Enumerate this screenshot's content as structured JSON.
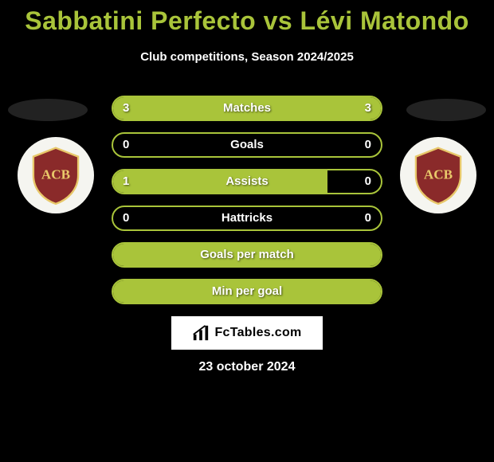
{
  "header": {
    "title": "Sabbatini Perfecto vs Lévi Matondo",
    "subtitle": "Club competitions, Season 2024/2025",
    "title_color": "#a9c43a"
  },
  "badges": {
    "left": {
      "shield_fill": "#8a2a2a",
      "border": "#e8c86a",
      "letters": "ACB"
    },
    "right": {
      "shield_fill": "#8a2a2a",
      "border": "#e8c86a",
      "letters": "ACB"
    }
  },
  "stats": {
    "bar_border_color": "#a9c43a",
    "fill_color": "#a9c43a",
    "rows": [
      {
        "label": "Matches",
        "left_val": "3",
        "right_val": "3",
        "left_pct": 50,
        "right_pct": 50,
        "show_vals": true
      },
      {
        "label": "Goals",
        "left_val": "0",
        "right_val": "0",
        "left_pct": 0,
        "right_pct": 0,
        "show_vals": true
      },
      {
        "label": "Assists",
        "left_val": "1",
        "right_val": "0",
        "left_pct": 80,
        "right_pct": 0,
        "show_vals": true
      },
      {
        "label": "Hattricks",
        "left_val": "0",
        "right_val": "0",
        "left_pct": 0,
        "right_pct": 0,
        "show_vals": true
      },
      {
        "label": "Goals per match",
        "left_val": "",
        "right_val": "",
        "left_pct": 100,
        "right_pct": 0,
        "show_vals": false
      },
      {
        "label": "Min per goal",
        "left_val": "",
        "right_val": "",
        "left_pct": 100,
        "right_pct": 0,
        "show_vals": false
      }
    ]
  },
  "footer": {
    "brand": "FcTables.com",
    "date": "23 october 2024"
  }
}
